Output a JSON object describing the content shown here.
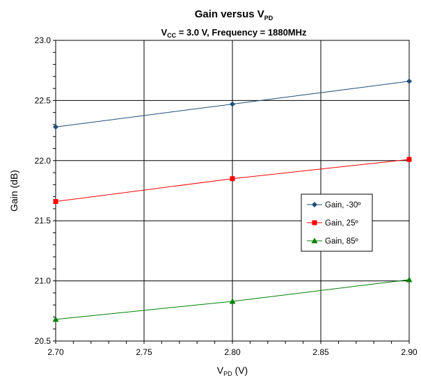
{
  "chart_data": {
    "type": "line",
    "title": {
      "main": "Gain versus V",
      "main_sub": "PD"
    },
    "subtitle": {
      "pre": "V",
      "sub": "CC",
      "post": " = 3.0 V, Frequency = 1880MHz"
    },
    "xlabel": {
      "main": "V",
      "sub": "PD",
      "post": " (V)"
    },
    "ylabel": "Gain (dB)",
    "x_ticks": [
      "2.70",
      "2.75",
      "2.80",
      "2.85",
      "2.90"
    ],
    "y_ticks": [
      "20.5",
      "21.0",
      "21.5",
      "22.0",
      "22.5",
      "23.0"
    ],
    "xlim": [
      2.7,
      2.9
    ],
    "ylim": [
      20.5,
      23.0
    ],
    "x": [
      2.7,
      2.8,
      2.9
    ],
    "grid": true,
    "legend_position": "right",
    "series": [
      {
        "name": "Gain, -30º",
        "values": [
          22.28,
          22.47,
          22.66
        ],
        "color": "#1f4e79",
        "marker": "diamond"
      },
      {
        "name": "Gain, 25º",
        "values": [
          21.66,
          21.85,
          22.01
        ],
        "color": "#ff0000",
        "marker": "square"
      },
      {
        "name": "Gain, 85º",
        "values": [
          20.68,
          20.83,
          21.01
        ],
        "color": "#008000",
        "marker": "triangle"
      }
    ]
  }
}
